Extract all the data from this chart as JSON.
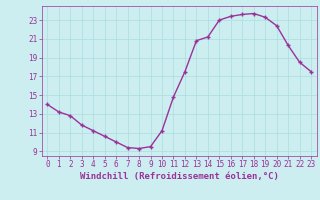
{
  "x": [
    0,
    1,
    2,
    3,
    4,
    5,
    6,
    7,
    8,
    9,
    10,
    11,
    12,
    13,
    14,
    15,
    16,
    17,
    18,
    19,
    20,
    21,
    22,
    23
  ],
  "y": [
    14.0,
    13.2,
    12.8,
    11.8,
    11.2,
    10.6,
    10.0,
    9.4,
    9.3,
    9.5,
    11.2,
    14.8,
    17.5,
    20.8,
    21.2,
    23.0,
    23.4,
    23.6,
    23.7,
    23.3,
    22.4,
    20.3,
    18.5,
    17.5
  ],
  "line_color": "#993399",
  "marker": "+",
  "bg_color": "#cceef0",
  "grid_color": "#aadddd",
  "xlabel": "Windchill (Refroidissement éolien,°C)",
  "tick_color": "#993399",
  "xlim": [
    -0.5,
    23.5
  ],
  "ylim": [
    8.5,
    24.5
  ],
  "yticks": [
    9,
    11,
    13,
    15,
    17,
    19,
    21,
    23
  ],
  "xticks": [
    0,
    1,
    2,
    3,
    4,
    5,
    6,
    7,
    8,
    9,
    10,
    11,
    12,
    13,
    14,
    15,
    16,
    17,
    18,
    19,
    20,
    21,
    22,
    23
  ],
  "tick_fontsize": 5.5,
  "xlabel_fontsize": 6.5,
  "linewidth": 1.0,
  "markersize": 3.5
}
